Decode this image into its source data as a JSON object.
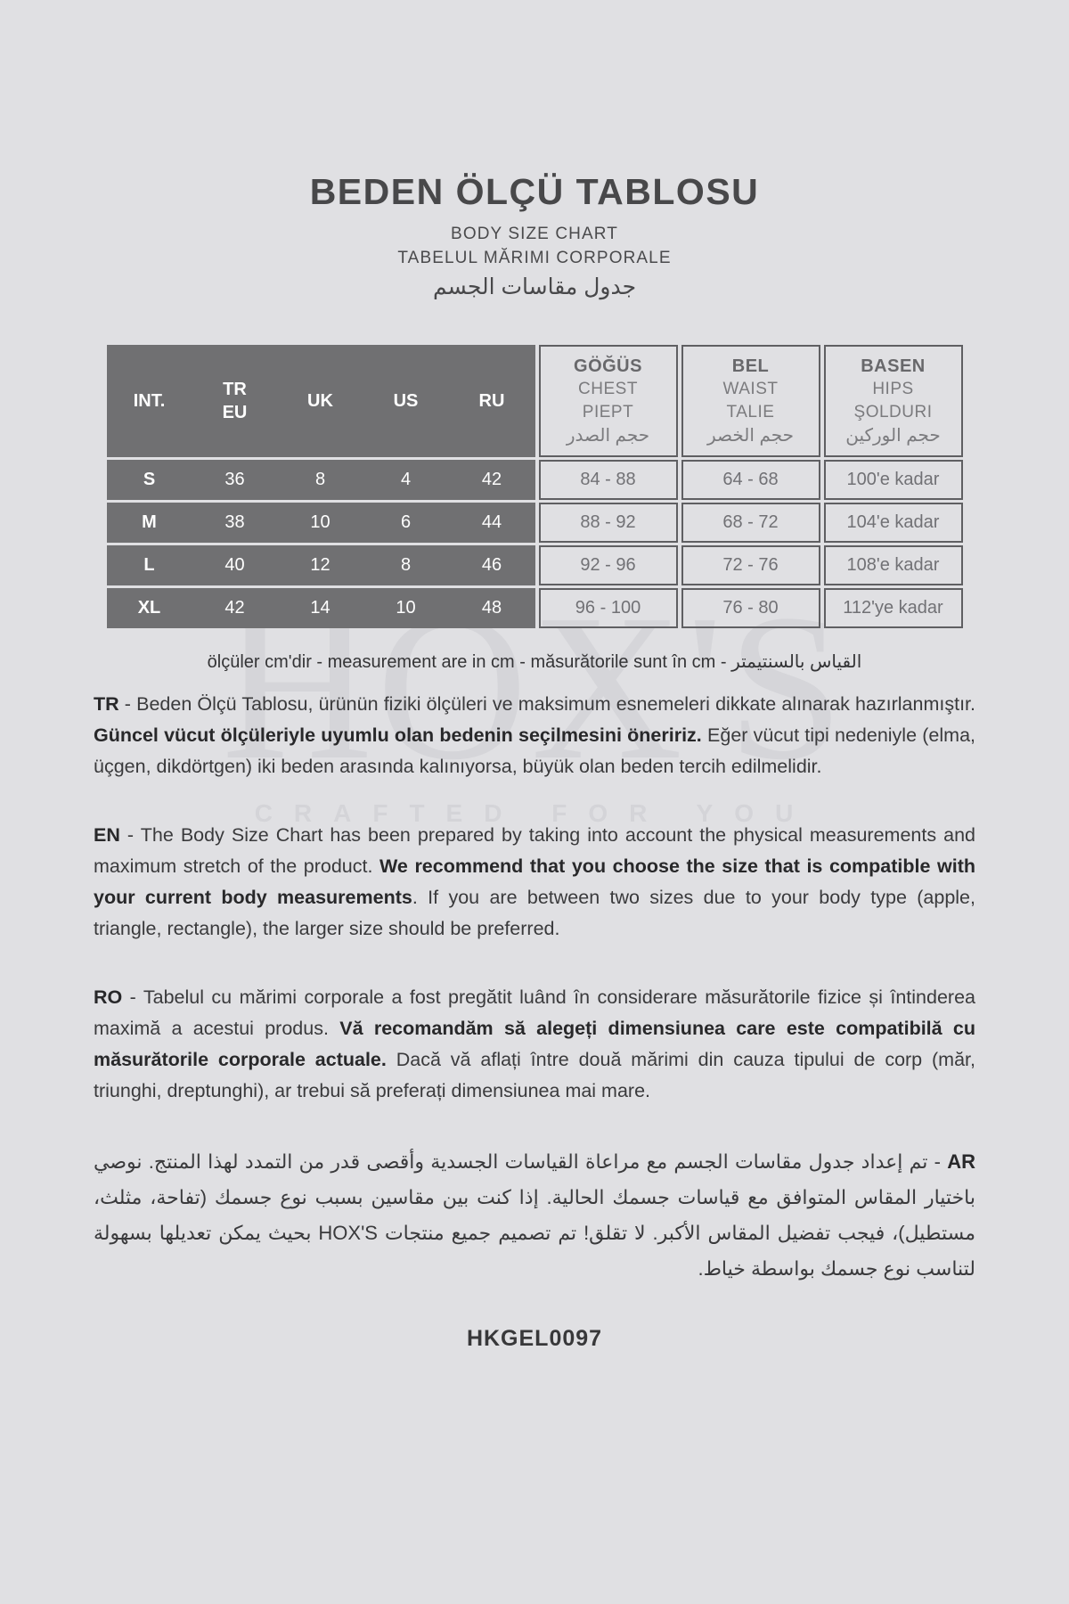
{
  "header": {
    "title": "BEDEN ÖLÇÜ TABLOSU",
    "subtitle_en": "BODY SIZE CHART",
    "subtitle_ro": "TABELUL MĂRIMI CORPORALE",
    "subtitle_ar": "جدول مقاسات الجسم"
  },
  "watermark": {
    "brand": "HOX'S",
    "tagline": "CRAFTED FOR YOU"
  },
  "size_table": {
    "size_columns": [
      "INT.",
      "TR\nEU",
      "UK",
      "US",
      "RU"
    ],
    "measure_columns": [
      {
        "line1": "GÖĞÜS",
        "line2": "CHEST",
        "line3": "PIEPT",
        "line4": "حجم الصدر"
      },
      {
        "line1": "BEL",
        "line2": "WAIST",
        "line3": "TALIE",
        "line4": "حجم الخصر"
      },
      {
        "line1": "BASEN",
        "line2": "HIPS",
        "line3": "ŞOLDURI",
        "line4": "حجم الوركين"
      }
    ],
    "rows": [
      {
        "int": "S",
        "tr_eu": "36",
        "uk": "8",
        "us": "4",
        "ru": "42",
        "chest": "84 - 88",
        "waist": "64 - 68",
        "hips": "100'e kadar"
      },
      {
        "int": "M",
        "tr_eu": "38",
        "uk": "10",
        "us": "6",
        "ru": "44",
        "chest": "88 - 92",
        "waist": "68 - 72",
        "hips": "104'e kadar"
      },
      {
        "int": "L",
        "tr_eu": "40",
        "uk": "12",
        "us": "8",
        "ru": "46",
        "chest": "92 - 96",
        "waist": "72 - 76",
        "hips": "108'e kadar"
      },
      {
        "int": "XL",
        "tr_eu": "42",
        "uk": "14",
        "us": "10",
        "ru": "48",
        "chest": "96 - 100",
        "waist": "76 - 80",
        "hips": "112'ye kadar"
      }
    ]
  },
  "units_note": "ölçüler cm'dir - measurement are in cm - măsurătorile sunt în cm - القياس بالسنتيمتر",
  "paragraphs": [
    {
      "id": "tr",
      "dir": "ltr",
      "segments": [
        {
          "text": "TR",
          "bold": true
        },
        {
          "text": " - Beden Ölçü Tablosu, ürünün fiziki ölçüleri ve maksimum esnemeleri dikkate alınarak hazırlanmıştır. ",
          "bold": false
        },
        {
          "text": "Güncel vücut ölçüleriyle uyumlu olan bedenin seçilmesini öneririz.",
          "bold": true
        },
        {
          "text": " Eğer vücut tipi nedeniyle (elma, üçgen, dikdörtgen) iki beden arasında kalınıyorsa, büyük olan beden tercih edilmelidir.",
          "bold": false
        }
      ]
    },
    {
      "id": "en",
      "dir": "ltr",
      "segments": [
        {
          "text": "EN",
          "bold": true
        },
        {
          "text": " - The Body Size Chart has been prepared by taking into account the physical measurements and maximum stretch of the product. ",
          "bold": false
        },
        {
          "text": "We recommend that you choose the size that is compatible with your current body measurements",
          "bold": true
        },
        {
          "text": ". If you are between two sizes due to your body type (apple, triangle, rectangle), the larger size should be preferred.",
          "bold": false
        }
      ]
    },
    {
      "id": "ro",
      "dir": "ltr",
      "segments": [
        {
          "text": "RO",
          "bold": true
        },
        {
          "text": " - Tabelul cu mărimi corporale a fost pregătit luând în considerare măsurătorile fizice și întinderea maximă a acestui produs. ",
          "bold": false
        },
        {
          "text": "Vă recomandăm să alegeți dimensiunea care este compatibilă cu măsurătorile corporale actuale.",
          "bold": true
        },
        {
          "text": " Dacă vă aflați între două mărimi din cauza tipului de corp (măr, triunghi, dreptunghi), ar trebui să preferați dimensiunea mai mare.",
          "bold": false
        }
      ]
    },
    {
      "id": "ar",
      "dir": "rtl",
      "segments": [
        {
          "text": "AR",
          "bold": true
        },
        {
          "text": " - تم إعداد جدول مقاسات الجسم مع مراعاة القياسات الجسدية وأقصى قدر من التمدد لهذا المنتج. نوصي باختيار المقاس المتوافق مع قياسات جسمك الحالية. إذا كنت بين مقاسين بسبب نوع جسمك (تفاحة، مثلث، مستطيل)، فيجب تفضيل المقاس الأكبر. لا تقلق! تم تصميم جميع منتجات HOX'S بحيث يمكن تعديلها بسهولة لتناسب نوع جسمك بواسطة خياط.",
          "bold": false
        }
      ]
    }
  ],
  "product_code": "HKGEL0097",
  "colors": {
    "background": "#e0e0e3",
    "table_dark": "#707072",
    "cell_border": "#5f5f62",
    "text_dark": "#3a3a3c",
    "text_on_dark": "#ffffff",
    "watermark": "#d5d5d9"
  }
}
